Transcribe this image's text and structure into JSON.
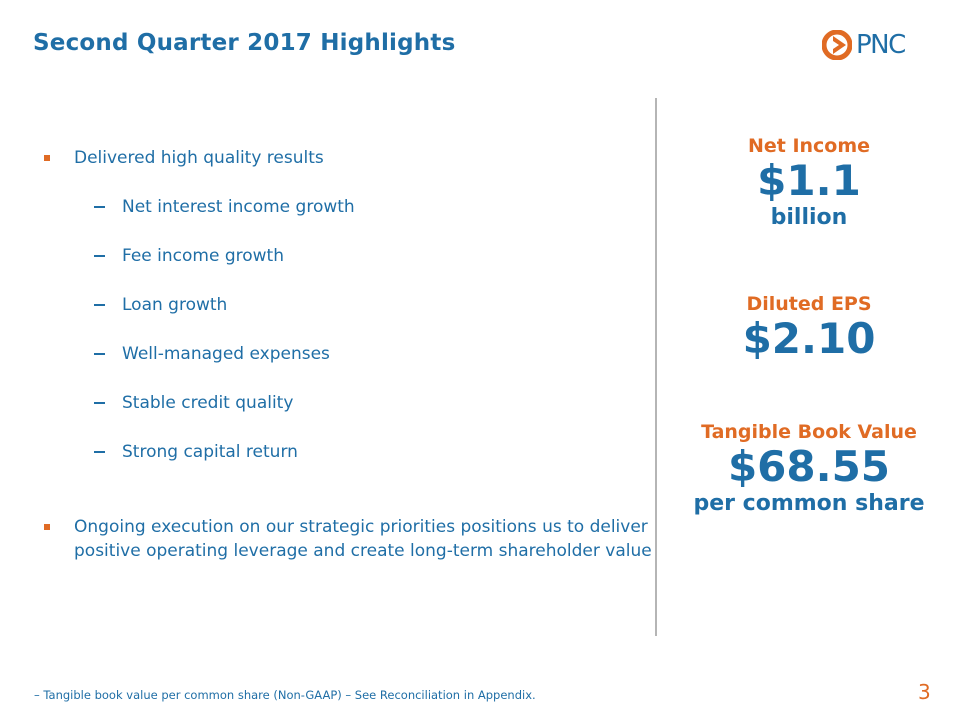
{
  "slide": {
    "title": "Second Quarter 2017 Highlights",
    "logo_text": "PNC",
    "page_number": "3",
    "footnote": "– Tangible book value per common share (Non-GAAP) – See Reconciliation in Appendix.",
    "colors": {
      "blue": "#1f6ea6",
      "orange": "#e06b24",
      "divider": "#b5b5b5"
    }
  },
  "highlights": {
    "main_bullet_1": "Delivered high quality results",
    "sub_bullets": [
      "Net interest income growth",
      "Fee income growth",
      "Loan growth",
      "Well-managed expenses",
      "Stable credit quality",
      "Strong capital return"
    ],
    "main_bullet_2_line_1": "Ongoing execution on our strategic priorities positions us to deliver",
    "main_bullet_2_line_2": "positive operating leverage and create long-term shareholder value"
  },
  "kpis": {
    "net_income": {
      "label": "Net Income",
      "value": "$1.1",
      "sub": "billion"
    },
    "diluted_eps": {
      "label": "Diluted EPS",
      "value": "$2.10"
    },
    "tangible_book_value": {
      "label": "Tangible Book Value",
      "value": "$68.55",
      "sub": "per common share"
    }
  }
}
